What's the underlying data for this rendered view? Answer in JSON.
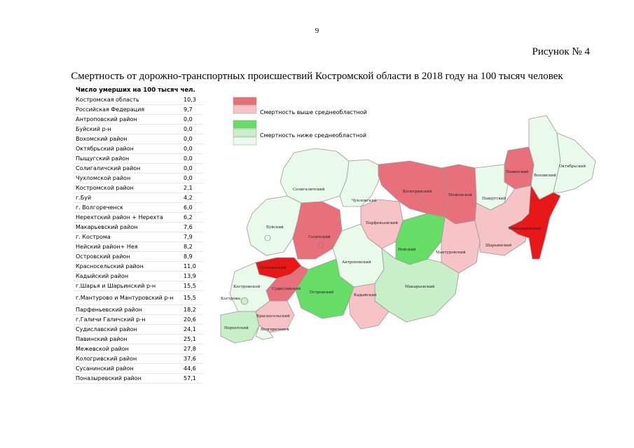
{
  "page": {
    "number": "9",
    "figure_label": "Рисунок № 4",
    "title": "Смертность от дорожно-транспортных происшествий Костромской области в 2018 году на 100 тысяч человек"
  },
  "table": {
    "header": "Число умерших на 100 тысяч чел.",
    "rows": [
      {
        "name": "Костромская область",
        "value": "10,3"
      },
      {
        "name": "Российская Федерация",
        "value": "9,7"
      },
      {
        "name": "Антроповский район",
        "value": "0,0"
      },
      {
        "name": "Буйский р-н",
        "value": "0,0"
      },
      {
        "name": "Вохомский район",
        "value": "0,0"
      },
      {
        "name": "Октябрьский район",
        "value": "0,0"
      },
      {
        "name": "Пыщугский район",
        "value": "0,0"
      },
      {
        "name": "Солигаличский район",
        "value": "0,0"
      },
      {
        "name": "Чухломской район",
        "value": "0,0"
      },
      {
        "name": "Костромской район",
        "value": "2,1"
      },
      {
        "name": "г.Буй",
        "value": "4,2"
      },
      {
        "name": "г. Волгореченск",
        "value": "6,0"
      },
      {
        "name": "Нерехтский район + Нерехта",
        "value": "6,2"
      },
      {
        "name": "Макарьевский район",
        "value": "7,6"
      },
      {
        "name": "г. Кострома",
        "value": "7,9"
      },
      {
        "name": "Нейский район+ Нея",
        "value": "8,2"
      },
      {
        "name": "Островский район",
        "value": "8,9"
      },
      {
        "name": "Красносельский район",
        "value": "11,0"
      },
      {
        "name": "Кадыйский район",
        "value": "13,9"
      },
      {
        "name": "г.Шарья и Шарьинский р-н",
        "value": "15,5"
      },
      {
        "name": "г.Мантурово и Мантуровский р-н",
        "value": "15,5",
        "tall": true
      },
      {
        "name": "Парфеньевский район",
        "value": "18,2"
      },
      {
        "name": "г.Галичи Галичский р-н",
        "value": "20,6"
      },
      {
        "name": "Судиславский район",
        "value": "24,1"
      },
      {
        "name": "Павинский район",
        "value": "25,1"
      },
      {
        "name": "Межевской район",
        "value": "27,8"
      },
      {
        "name": "Кологривский район",
        "value": "37,6"
      },
      {
        "name": "Сусанинский район",
        "value": "44,6"
      },
      {
        "name": "Поназыревский район",
        "value": "57,1"
      }
    ]
  },
  "legend": {
    "above": "Смертность выше среднеобластной",
    "below": "Смертность ниже среднеобластной",
    "colors_above": [
      "#e8707a",
      "#f6c3c7"
    ],
    "colors_below": [
      "#66dd66",
      "#c8f0c8",
      "#eafaea"
    ]
  },
  "map_labels": {
    "soligalich": "Солигаличский",
    "chukhloma": "Чухломский",
    "koloqriv": "Кологривский",
    "mezha": "Межевской",
    "pavino": "Павинский",
    "vokhma": "Вохомский",
    "oktyabr": "Октябрьский",
    "pyshchug": "Пыщугский",
    "ponazyr": "Поназыревский",
    "parfen": "Парфеньевский",
    "bui": "Буйский",
    "galich": "Галичский",
    "neya": "Нейский",
    "mantur": "Мантуровский",
    "sharya": "Шарьинский",
    "susanin": "Сусанинский",
    "antrop": "Антроповский",
    "kostroma_r": "Костромской",
    "sudislav": "Судиславский",
    "ostrov": "Островский",
    "kadyi": "Кадыйский",
    "makariev": "Макарьевский",
    "kostroma": "Кострома",
    "krasnoe": "Красносельский",
    "nerekhta": "Нерехтский",
    "volgorechensk": "Волгореченск"
  },
  "colors": {
    "red_dark": "#e81818",
    "red": "#e8707a",
    "pink": "#f6c3c7",
    "green": "#66dd66",
    "green_light": "#c8f0c8",
    "green_pale": "#eafaea",
    "border": "#9a9a9a"
  }
}
